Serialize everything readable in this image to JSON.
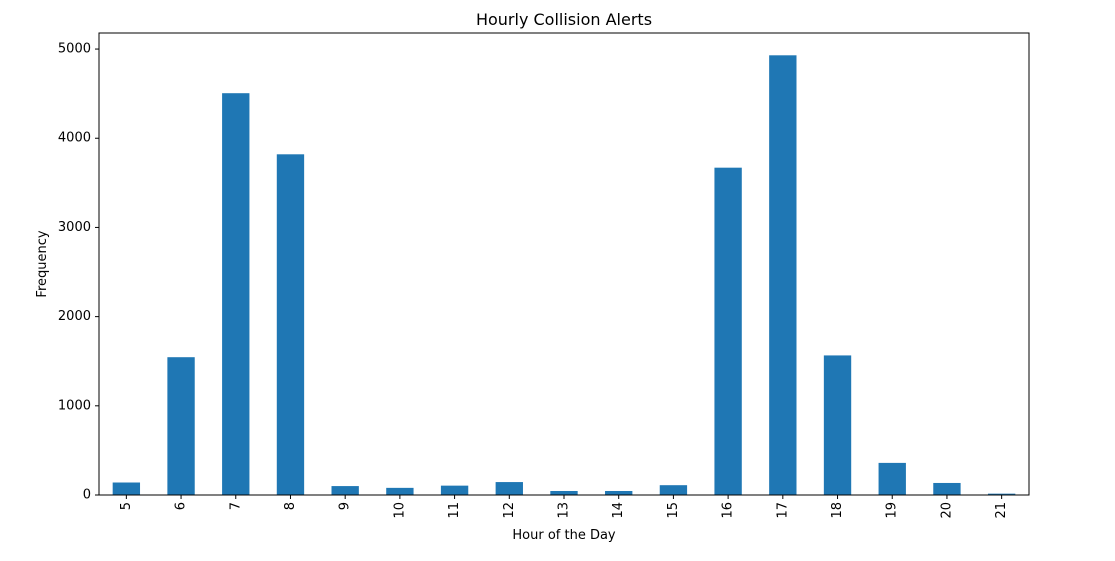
{
  "chart_data": {
    "type": "bar",
    "title": "Hourly Collision Alerts",
    "xlabel": "Hour of the Day",
    "ylabel": "Frequency",
    "categories": [
      "5",
      "6",
      "7",
      "8",
      "9",
      "10",
      "11",
      "12",
      "13",
      "14",
      "15",
      "16",
      "17",
      "18",
      "19",
      "20",
      "21"
    ],
    "values": [
      140,
      1545,
      4505,
      3820,
      100,
      80,
      105,
      145,
      45,
      45,
      110,
      3670,
      4930,
      1565,
      360,
      135,
      15
    ],
    "ylim": [
      0,
      5180
    ],
    "yticks": [
      0,
      1000,
      2000,
      3000,
      4000,
      5000
    ],
    "grid": false,
    "legend": "none",
    "bar_color": "#1f77b4"
  }
}
